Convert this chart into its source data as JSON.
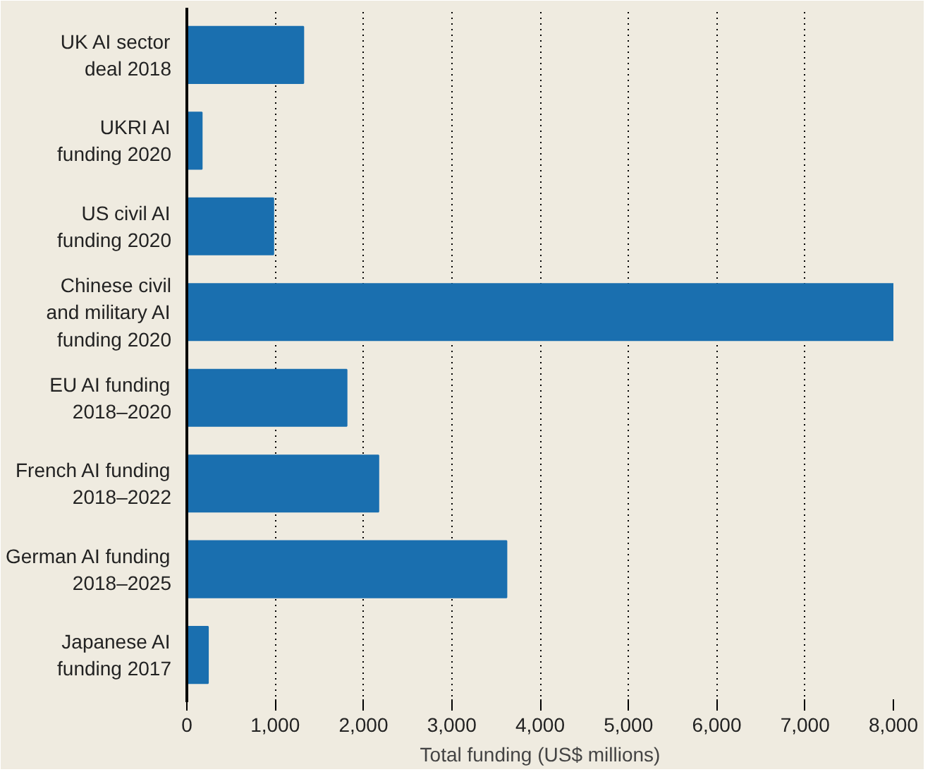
{
  "chart_data": {
    "type": "bar",
    "orientation": "horizontal",
    "xlabel": "Total funding (US$ millions)",
    "categories": [
      "UK AI sector\ndeal 2018",
      "UKRI AI\nfunding 2020",
      "US civil AI\nfunding 2020",
      "Chinese civil\nand military AI\nfunding 2020",
      "EU AI funding\n2018–2020",
      "French AI funding\n2018–2022",
      "German AI funding\n2018–2025",
      "Japanese AI\nfunding 2017"
    ],
    "values": [
      1320,
      170,
      980,
      8000,
      1810,
      2170,
      3620,
      240
    ],
    "color": "#1a6faf",
    "xlim": [
      0,
      8000
    ],
    "xticks": [
      0,
      {
        "value": 1000,
        "label": "1,000"
      },
      {
        "value": 2000,
        "label": "2,000"
      },
      {
        "value": 3000,
        "label": "3,000"
      },
      {
        "value": 4000,
        "label": "4,000"
      },
      {
        "value": 5000,
        "label": "5,000"
      },
      {
        "value": 6000,
        "label": "6,000"
      },
      {
        "value": 7000,
        "label": "7,000"
      },
      {
        "value": 8000,
        "label": "8,000"
      }
    ],
    "grid": "x"
  }
}
